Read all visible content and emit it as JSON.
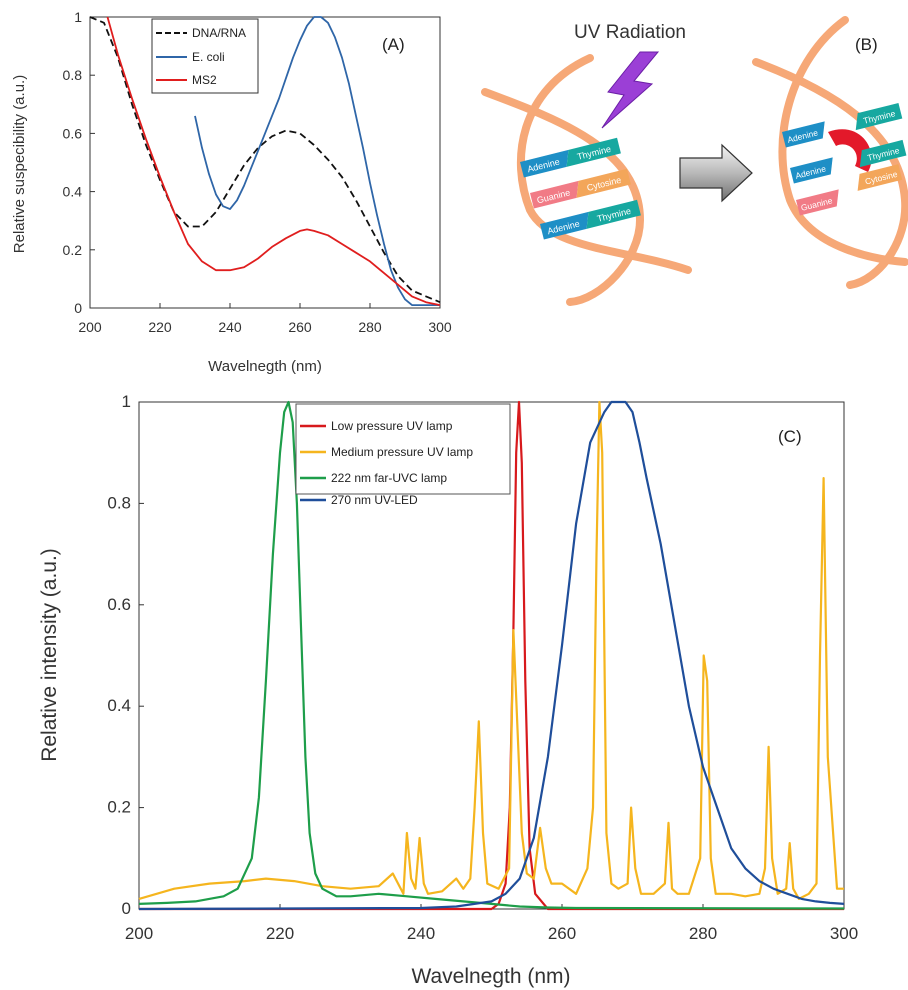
{
  "chart_data": [
    {
      "type": "line",
      "panel_label": "(A)",
      "xlabel": "Wavelnegth (nm)",
      "ylabel": "Relative suspecibility (a.u.)",
      "xlim": [
        200,
        300
      ],
      "ylim": [
        0,
        1
      ],
      "xticks": [
        "200",
        "220",
        "240",
        "260",
        "280",
        "300"
      ],
      "yticks": [
        "0",
        "0.2",
        "0.4",
        "0.6",
        "0.8",
        "1"
      ],
      "legend_position": "top-left",
      "series": [
        {
          "name": "DNA/RNA",
          "color": "#111111",
          "dash": "dashed",
          "x": [
            200,
            204,
            208,
            212,
            216,
            220,
            224,
            228,
            232,
            236,
            240,
            244,
            248,
            252,
            256,
            260,
            264,
            268,
            272,
            276,
            280,
            284,
            288,
            292,
            296,
            300
          ],
          "y": [
            1.0,
            0.98,
            0.86,
            0.7,
            0.56,
            0.44,
            0.33,
            0.28,
            0.28,
            0.33,
            0.41,
            0.49,
            0.55,
            0.59,
            0.61,
            0.6,
            0.56,
            0.51,
            0.45,
            0.37,
            0.28,
            0.19,
            0.11,
            0.06,
            0.04,
            0.02
          ]
        },
        {
          "name": "E. coli",
          "color": "#2f66a8",
          "dash": "solid",
          "x": [
            230,
            232,
            234,
            236,
            238,
            240,
            242,
            244,
            246,
            248,
            250,
            252,
            254,
            256,
            258,
            260,
            262,
            264,
            266,
            268,
            270,
            272,
            274,
            276,
            278,
            280,
            282,
            284,
            286,
            288,
            290,
            292,
            294,
            296,
            298,
            300
          ],
          "y": [
            0.66,
            0.55,
            0.46,
            0.39,
            0.35,
            0.34,
            0.37,
            0.42,
            0.48,
            0.54,
            0.6,
            0.66,
            0.72,
            0.79,
            0.86,
            0.92,
            0.97,
            1.0,
            1.0,
            0.98,
            0.93,
            0.86,
            0.77,
            0.66,
            0.55,
            0.43,
            0.32,
            0.22,
            0.13,
            0.07,
            0.03,
            0.01,
            0.01,
            0.01,
            0.01,
            0.01
          ]
        },
        {
          "name": "MS2",
          "color": "#e01e1e",
          "dash": "solid",
          "x": [
            205,
            208,
            212,
            216,
            220,
            224,
            228,
            232,
            236,
            240,
            244,
            248,
            252,
            256,
            260,
            262,
            264,
            268,
            272,
            276,
            280,
            284,
            288,
            292,
            296,
            300
          ],
          "y": [
            1.0,
            0.87,
            0.72,
            0.58,
            0.45,
            0.33,
            0.22,
            0.16,
            0.13,
            0.13,
            0.14,
            0.17,
            0.21,
            0.24,
            0.265,
            0.27,
            0.265,
            0.25,
            0.22,
            0.19,
            0.16,
            0.12,
            0.08,
            0.04,
            0.02,
            0.01
          ]
        }
      ]
    },
    {
      "type": "line",
      "panel_label": "(C)",
      "xlabel": "Wavelnegth (nm)",
      "ylabel": "Relative intensity (a.u.)",
      "xlim": [
        200,
        300
      ],
      "ylim": [
        0,
        1
      ],
      "xticks": [
        "200",
        "220",
        "240",
        "260",
        "280",
        "300"
      ],
      "yticks": [
        "0",
        "0.2",
        "0.4",
        "0.6",
        "0.8",
        "1"
      ],
      "legend_position": "top-left",
      "series": [
        {
          "name": "Low pressure UV lamp",
          "color": "#d7191c",
          "x": [
            200,
            250,
            251,
            252,
            252.6,
            253.1,
            253.5,
            253.9,
            254.3,
            254.8,
            255.4,
            256.2,
            258,
            300
          ],
          "y": [
            0,
            0,
            0.01,
            0.05,
            0.2,
            0.55,
            0.9,
            1.0,
            0.88,
            0.45,
            0.12,
            0.03,
            0,
            0
          ]
        },
        {
          "name": "Medium pressure UV lamp",
          "color": "#f5b51e",
          "x": [
            200,
            205,
            210,
            215,
            218,
            222,
            226,
            230,
            234,
            236,
            237.5,
            238,
            238.6,
            239.2,
            239.8,
            240.4,
            241,
            243,
            245,
            246,
            247,
            247.6,
            248.2,
            248.8,
            249.4,
            251,
            252.5,
            253.1,
            253.7,
            254.3,
            255,
            256,
            256.9,
            257.7,
            258.5,
            260,
            262,
            263.6,
            264.4,
            264.9,
            265.3,
            265.7,
            266.3,
            267,
            268,
            269.3,
            269.8,
            270.4,
            271.2,
            273,
            274.6,
            275.1,
            275.6,
            276.4,
            278,
            279.6,
            280.1,
            280.6,
            281.1,
            281.8,
            284,
            286,
            288,
            288.8,
            289.3,
            289.8,
            290.6,
            291.8,
            292.3,
            292.8,
            293.6,
            295,
            296.1,
            296.6,
            297.1,
            297.7,
            299,
            300
          ],
          "y": [
            0.02,
            0.04,
            0.05,
            0.055,
            0.06,
            0.055,
            0.045,
            0.04,
            0.045,
            0.07,
            0.03,
            0.15,
            0.06,
            0.04,
            0.14,
            0.05,
            0.03,
            0.035,
            0.06,
            0.04,
            0.06,
            0.2,
            0.37,
            0.15,
            0.05,
            0.04,
            0.08,
            0.55,
            0.35,
            0.15,
            0.07,
            0.06,
            0.16,
            0.08,
            0.05,
            0.05,
            0.03,
            0.08,
            0.2,
            0.7,
            1.0,
            0.9,
            0.15,
            0.05,
            0.04,
            0.05,
            0.2,
            0.08,
            0.03,
            0.03,
            0.05,
            0.17,
            0.04,
            0.03,
            0.03,
            0.1,
            0.5,
            0.45,
            0.1,
            0.03,
            0.03,
            0.025,
            0.03,
            0.08,
            0.32,
            0.1,
            0.03,
            0.04,
            0.13,
            0.04,
            0.02,
            0.03,
            0.05,
            0.5,
            0.85,
            0.3,
            0.04,
            0.04
          ]
        },
        {
          "name": "222 nm far-UVC lamp",
          "color": "#1e9e4a",
          "x": [
            200,
            204,
            208,
            212,
            214,
            216,
            217,
            218,
            219,
            220,
            220.6,
            221.2,
            221.8,
            222.4,
            223,
            223.6,
            224.2,
            225,
            226,
            228,
            230,
            234,
            238,
            242,
            246,
            250,
            254,
            258,
            262,
            300
          ],
          "y": [
            0.01,
            0.012,
            0.015,
            0.025,
            0.04,
            0.1,
            0.22,
            0.45,
            0.7,
            0.9,
            0.98,
            1.0,
            0.96,
            0.8,
            0.55,
            0.3,
            0.15,
            0.07,
            0.04,
            0.025,
            0.025,
            0.03,
            0.025,
            0.02,
            0.015,
            0.01,
            0.005,
            0.003,
            0.002,
            0.001
          ]
        },
        {
          "name": "270 nm UV-LED",
          "color": "#1f4e9a",
          "x": [
            200,
            240,
            245,
            250,
            252,
            254,
            256,
            258,
            260,
            262,
            264,
            266,
            267,
            268,
            269,
            270,
            271,
            272,
            274,
            276,
            278,
            280,
            282,
            284,
            286,
            288,
            290,
            292,
            294,
            296,
            298,
            300
          ],
          "y": [
            0,
            0.002,
            0.005,
            0.015,
            0.03,
            0.06,
            0.14,
            0.3,
            0.52,
            0.76,
            0.92,
            0.98,
            1.0,
            1.0,
            1.0,
            0.98,
            0.92,
            0.85,
            0.72,
            0.56,
            0.4,
            0.28,
            0.2,
            0.12,
            0.08,
            0.055,
            0.04,
            0.03,
            0.02,
            0.015,
            0.012,
            0.01
          ]
        }
      ]
    }
  ],
  "diagram": {
    "panel_label": "(B)",
    "title": "UV Radiation",
    "before_pairs": [
      [
        "Adenine",
        "Thymine"
      ],
      [
        "Guanine",
        "Cytosine"
      ],
      [
        "Adenine",
        "Thymine"
      ]
    ],
    "after": {
      "top": [
        "Adenine",
        "Thymine"
      ],
      "dimer": "Dimer",
      "middle": [
        "Adenine",
        "Thymine"
      ],
      "bottom": [
        "Guanine",
        "Cytosine"
      ]
    },
    "colors": {
      "backbone": "#f6a877",
      "adenine": "#1e8fc6",
      "thymine": "#17a8a0",
      "guanine": "#f17b86",
      "cytosine": "#f3a65a",
      "dimer": "#e3192a",
      "lightning": "#9b3fd6"
    }
  }
}
